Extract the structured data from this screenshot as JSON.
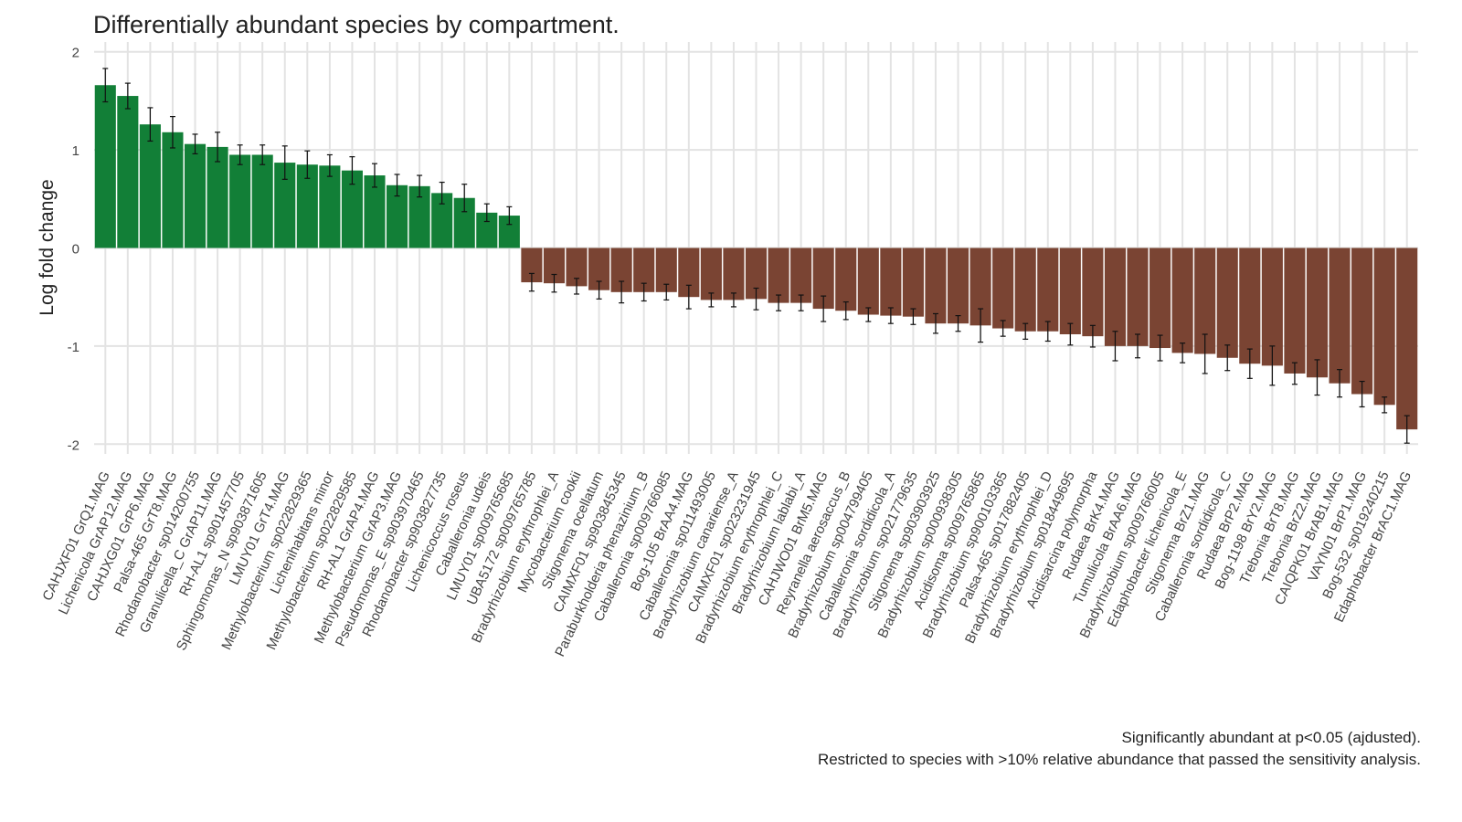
{
  "chart_data": {
    "type": "bar",
    "title": "Differentially abundant species by compartment.",
    "y_label": "Log fold change",
    "caption": [
      "Significantly abundant at p<0.05 (ajdusted).",
      "Restricted to species with >10% relative abundance that passed the sensitivity analysis."
    ],
    "categories": [
      "CAHJXF01 GrQ1.MAG",
      "Lichenicola GrAP12.MAG",
      "CAHJXG01 GrP6.MAG",
      "Palsa-465 GrT8.MAG",
      "Rhodanobacter sp014200755",
      "Granulicella_C GrAP11.MAG",
      "RH-AL1 sp901457705",
      "Sphingomonas_N sp903871605",
      "LMUY01 GrT4.MAG",
      "Methylobacterium sp022829365",
      "Lichenihabitans minor",
      "Methylobacterium sp022829585",
      "RH-AL1 GrAP4.MAG",
      "Methylobacterium GrAP3.MAG",
      "Pseudomonas_E sp903970465",
      "Rhodanobacter sp903827735",
      "Lichenicoccus roseus",
      "Caballeronia udeis",
      "LMUY01 sp009765685",
      "UBA5172 sp009765785",
      "Bradyrhizobium erythrophlei_A",
      "Mycobacterium cookii",
      "Stigonema ocellatum",
      "CAIMXF01 sp903845345",
      "Paraburkholderia phenazinium_B",
      "Caballeronia sp009766085",
      "Bog-105 BrAA4.MAG",
      "Caballeronia sp011493005",
      "Bradyrhizobium canariense_A",
      "CAIMXF01 sp023231945",
      "Bradyrhizobium erythrophlei_C",
      "Bradyrhizobium lablabi_A",
      "CAHJWO01 BrM5.MAG",
      "Reyranella aerosaccus_B",
      "Bradyrhizobium sp004799405",
      "Caballeronia sordidicola_A",
      "Bradyrhizobium sp021779635",
      "Stigonema sp903903925",
      "Bradyrhizobium sp000938305",
      "Acidisoma sp009765865",
      "Bradyrhizobium sp900103365",
      "Palsa-465 sp017882405",
      "Bradyrhizobium erythrophlei_D",
      "Bradyrhizobium sp018449695",
      "Acidisarcina polymorpha",
      "Rudaea BrK4.MAG",
      "Tumulicola BrAA6.MAG",
      "Bradyrhizobium sp009766005",
      "Edaphobacter lichenicola_E",
      "Stigonema BrZ1.MAG",
      "Caballeronia sordidicola_C",
      "Rudaea BrP2.MAG",
      "Bog-1198 BrY2.MAG",
      "Trebonia BrT8.MAG",
      "Trebonia BrZ2.MAG",
      "CAIQPK01 BrAB1.MAG",
      "VAYN01 BrP1.MAG",
      "Bog-532 sp019240215",
      "Edaphobacter BrAC1.MAG"
    ],
    "values": [
      1.66,
      1.55,
      1.26,
      1.18,
      1.06,
      1.03,
      0.95,
      0.95,
      0.87,
      0.85,
      0.84,
      0.79,
      0.74,
      0.64,
      0.63,
      0.56,
      0.51,
      0.36,
      0.33,
      -0.35,
      -0.36,
      -0.39,
      -0.43,
      -0.45,
      -0.45,
      -0.45,
      -0.5,
      -0.53,
      -0.53,
      -0.52,
      -0.56,
      -0.56,
      -0.62,
      -0.64,
      -0.68,
      -0.69,
      -0.7,
      -0.77,
      -0.77,
      -0.79,
      -0.82,
      -0.85,
      -0.85,
      -0.88,
      -0.9,
      -1.0,
      -1.0,
      -1.02,
      -1.07,
      -1.08,
      -1.12,
      -1.18,
      -1.2,
      -1.28,
      -1.32,
      -1.38,
      -1.49,
      -1.6,
      -1.85
    ],
    "errors": [
      0.17,
      0.13,
      0.17,
      0.16,
      0.1,
      0.15,
      0.1,
      0.1,
      0.17,
      0.14,
      0.11,
      0.14,
      0.12,
      0.11,
      0.11,
      0.11,
      0.14,
      0.09,
      0.09,
      0.09,
      0.09,
      0.08,
      0.09,
      0.11,
      0.09,
      0.08,
      0.12,
      0.07,
      0.07,
      0.11,
      0.08,
      0.08,
      0.13,
      0.09,
      0.07,
      0.08,
      0.08,
      0.1,
      0.08,
      0.17,
      0.08,
      0.08,
      0.1,
      0.11,
      0.11,
      0.15,
      0.12,
      0.13,
      0.1,
      0.2,
      0.13,
      0.15,
      0.2,
      0.11,
      0.18,
      0.14,
      0.13,
      0.08,
      0.14
    ],
    "positive_color": "#127f37",
    "negative_color": "#7a4433",
    "ylim": [
      -2.1,
      2.1
    ],
    "yticks": [
      -2,
      -1,
      0,
      1,
      2
    ],
    "grid": true
  }
}
